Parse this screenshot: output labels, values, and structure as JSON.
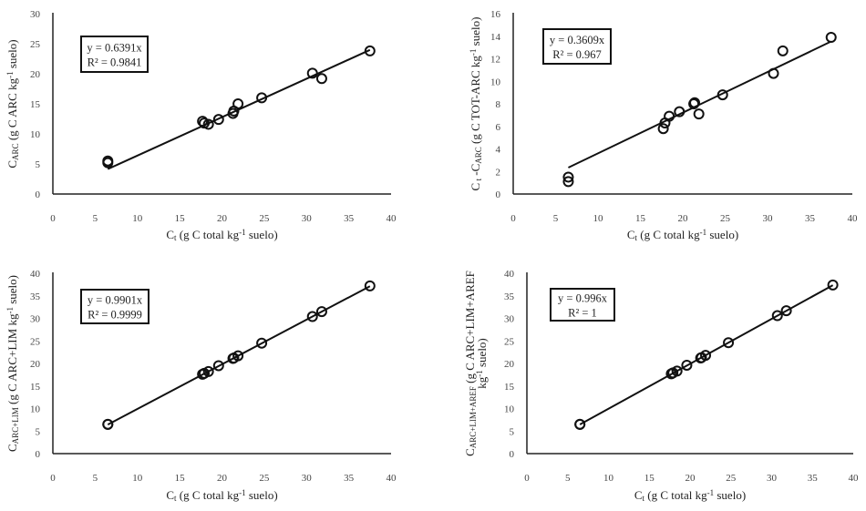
{
  "chart_data": [
    {
      "type": "scatter",
      "id": "arc",
      "x": [
        6.5,
        6.5,
        17.7,
        17.9,
        18.4,
        19.6,
        21.3,
        21.4,
        21.9,
        24.7,
        30.7,
        31.8,
        37.5
      ],
      "y": [
        5.5,
        5.2,
        12.1,
        11.8,
        11.6,
        12.4,
        13.4,
        13.8,
        15.0,
        16.0,
        20.1,
        19.2,
        23.8
      ],
      "trendline": {
        "slope": 0.6391,
        "equation": "y = 0.6391x",
        "r2": "R² = 0.9841"
      },
      "xlim": [
        0,
        40
      ],
      "xticks": [
        0,
        5,
        10,
        15,
        20,
        25,
        30,
        35,
        40
      ],
      "ylim": [
        0,
        30
      ],
      "yticks": [
        0,
        5,
        10,
        15,
        20,
        25,
        30
      ],
      "xlabel": [
        {
          "t": "C"
        },
        {
          "t": "t",
          "s": "sub"
        },
        {
          "t": " (g C total kg"
        },
        {
          "t": "-1",
          "s": "sup"
        },
        {
          "t": " suelo)"
        }
      ],
      "ylabel": [
        [
          {
            "t": "C"
          },
          {
            "t": "ARC",
            "s": "sub"
          },
          {
            "t": " (g C ARC kg"
          },
          {
            "t": "-1",
            "s": "sup"
          },
          {
            "t": " suelo)"
          }
        ]
      ]
    },
    {
      "type": "scatter",
      "id": "tot-arc",
      "x": [
        6.5,
        6.5,
        17.7,
        17.9,
        18.4,
        19.6,
        21.3,
        21.4,
        21.9,
        24.7,
        30.7,
        31.8,
        37.5
      ],
      "y": [
        1.1,
        1.5,
        5.8,
        6.3,
        6.9,
        7.3,
        8.0,
        8.1,
        7.1,
        8.8,
        10.7,
        12.7,
        13.9
      ],
      "trendline": {
        "slope": 0.3609,
        "equation": "y = 0.3609x",
        "r2": "R² = 0.967"
      },
      "xlim": [
        0,
        40
      ],
      "xticks": [
        0,
        5,
        10,
        15,
        20,
        25,
        30,
        35,
        40
      ],
      "ylim": [
        0,
        16
      ],
      "yticks": [
        0,
        2,
        4,
        6,
        8,
        10,
        12,
        14,
        16
      ],
      "xlabel": [
        {
          "t": "C"
        },
        {
          "t": "t",
          "s": "sub"
        },
        {
          "t": " (g C total kg"
        },
        {
          "t": "-1",
          "s": "sup"
        },
        {
          "t": " suelo)"
        }
      ],
      "ylabel": [
        [
          {
            "t": "C"
          },
          {
            "t": " t",
            "s": "sub"
          },
          {
            "t": " -C"
          },
          {
            "t": "ARC",
            "s": "sub"
          },
          {
            "t": " (g C TOT-ARC kg"
          },
          {
            "t": "-1",
            "s": "sup"
          },
          {
            "t": " suelo)"
          }
        ]
      ]
    },
    {
      "type": "scatter",
      "id": "arc-lim",
      "x": [
        6.5,
        6.5,
        17.7,
        17.9,
        18.4,
        19.6,
        21.3,
        21.4,
        21.9,
        24.7,
        30.7,
        31.8,
        37.5
      ],
      "y": [
        6.5,
        6.5,
        17.6,
        17.8,
        18.2,
        19.5,
        21.1,
        21.2,
        21.7,
        24.5,
        30.4,
        31.5,
        37.2
      ],
      "trendline": {
        "slope": 0.9901,
        "equation": "y = 0.9901x",
        "r2": "R² = 0.9999"
      },
      "xlim": [
        0,
        40
      ],
      "xticks": [
        0,
        5,
        10,
        15,
        20,
        25,
        30,
        35,
        40
      ],
      "ylim": [
        0,
        40
      ],
      "yticks": [
        0,
        5,
        10,
        15,
        20,
        25,
        30,
        35,
        40
      ],
      "xlabel": [
        {
          "t": "C"
        },
        {
          "t": "t",
          "s": "sub"
        },
        {
          "t": " (g C total kg"
        },
        {
          "t": "-1",
          "s": "sup"
        },
        {
          "t": " suelo)"
        }
      ],
      "ylabel": [
        [
          {
            "t": "C"
          },
          {
            "t": "ARC+LIM",
            "s": "sub"
          },
          {
            "t": " (g C ARC+LIM kg"
          },
          {
            "t": "-1",
            "s": "sup"
          },
          {
            "t": " suelo)"
          }
        ]
      ]
    },
    {
      "type": "scatter",
      "id": "arc-lim-aref",
      "x": [
        6.5,
        6.5,
        17.7,
        17.9,
        18.4,
        19.6,
        21.3,
        21.4,
        21.9,
        24.7,
        30.7,
        31.8,
        37.5
      ],
      "y": [
        6.5,
        6.5,
        17.7,
        17.9,
        18.3,
        19.6,
        21.2,
        21.3,
        21.8,
        24.6,
        30.6,
        31.7,
        37.4
      ],
      "trendline": {
        "slope": 0.996,
        "equation": "y = 0.996x",
        "r2": "R² = 1"
      },
      "xlim": [
        0,
        40
      ],
      "xticks": [
        0,
        5,
        10,
        15,
        20,
        25,
        30,
        35,
        40
      ],
      "ylim": [
        0,
        40
      ],
      "yticks": [
        0,
        5,
        10,
        15,
        20,
        25,
        30,
        35,
        40
      ],
      "xlabel": [
        {
          "t": "C"
        },
        {
          "t": "t",
          "s": "sub"
        },
        {
          "t": " (g C total kg"
        },
        {
          "t": "-1",
          "s": "sup"
        },
        {
          "t": " suelo)"
        }
      ],
      "ylabel": [
        [
          {
            "t": "C"
          },
          {
            "t": "ARC+LIM+AREF",
            "s": "sub"
          },
          {
            "t": " (g C ARC+LIM+AREF"
          }
        ],
        [
          {
            "t": "kg"
          },
          {
            "t": "-1",
            "s": "sup"
          },
          {
            "t": " suelo)"
          }
        ]
      ]
    }
  ]
}
